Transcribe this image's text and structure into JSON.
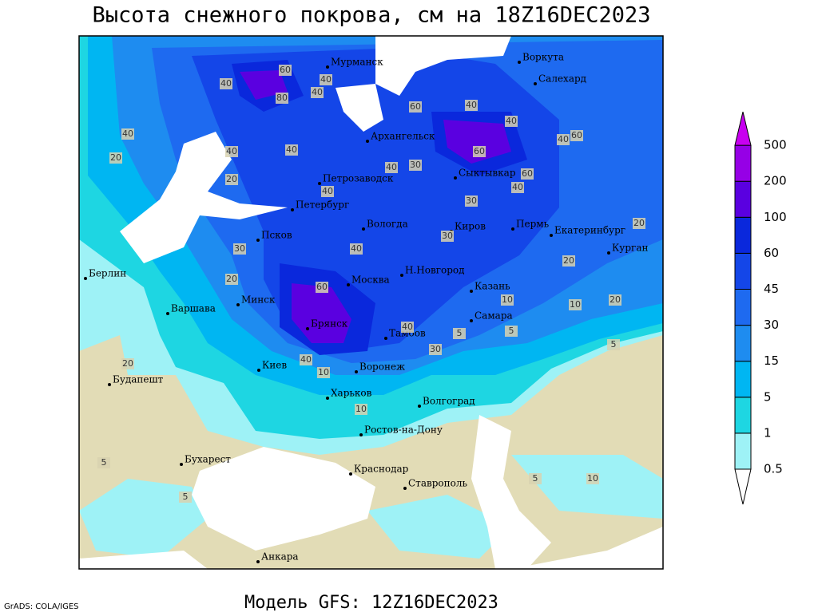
{
  "header": {
    "title": "Высота снежного покрова, см на 18Z16DEC2023"
  },
  "footer": {
    "credit": "GrADS: COLA/IGES",
    "model": "Модель GFS: 12Z16DEC2023"
  },
  "legend": {
    "levels": [
      0.5,
      1,
      5,
      15,
      30,
      45,
      60,
      100,
      200,
      500
    ],
    "colors": [
      "#ffffff",
      "#9ef2f6",
      "#1ed6e2",
      "#00b6f2",
      "#1e8cf0",
      "#1e6af0",
      "#1446e8",
      "#0a28dc",
      "#5a00e0",
      "#9600e6",
      "#c800f0"
    ]
  },
  "cities": [
    "Мурманск",
    "Воркута",
    "Салехард",
    "Архангельск",
    "Петрозаводск",
    "Сыктывкар",
    "Петербург",
    "Вологда",
    "Киров",
    "Пермь",
    "Екатеринбург",
    "Курган",
    "Псков",
    "Берлин",
    "Н.Новгород",
    "Москва",
    "Казань",
    "Минск",
    "Варшава",
    "Самара",
    "Брянск",
    "Тамбов",
    "Киев",
    "Воронеж",
    "Будапешт",
    "Харьков",
    "Волгоград",
    "Ростов-на-Дону",
    "Бухарест",
    "Краснодар",
    "Ставрополь",
    "Анкара"
  ],
  "contour_labels": [
    40,
    60,
    40,
    80,
    40,
    40,
    20,
    60,
    40,
    40,
    40,
    60,
    60,
    40,
    40,
    40,
    30,
    20,
    40,
    60,
    40,
    30,
    40,
    30,
    20,
    30,
    20,
    20,
    10,
    60,
    40,
    20,
    10,
    20,
    40,
    10,
    30,
    5,
    5,
    5,
    10,
    5,
    5,
    5,
    10
  ]
}
